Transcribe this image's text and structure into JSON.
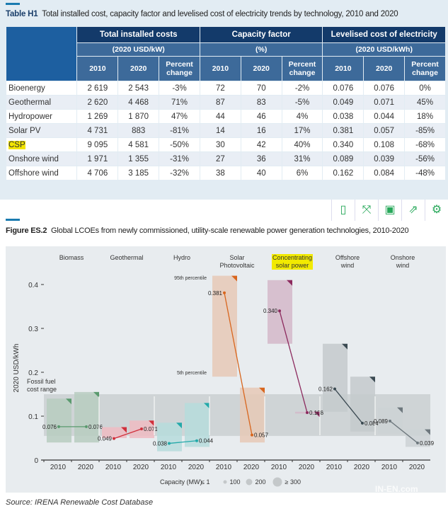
{
  "table": {
    "title_bold": "Table H1",
    "title": "Total installed cost, capacity factor and levelised cost of electricity trends by technology, 2010 and 2020",
    "groups": [
      {
        "name": "Total installed costs",
        "unit": "(2020 USD/kW)"
      },
      {
        "name": "Capacity factor",
        "unit": "(%)"
      },
      {
        "name": "Levelised cost of electricity",
        "unit": "(2020 USD/kWh)"
      }
    ],
    "subcols": [
      "2010",
      "2020",
      "Percent change"
    ],
    "rows": [
      [
        "Bioenergy",
        "2 619",
        "2 543",
        "-3%",
        "72",
        "70",
        "-2%",
        "0.076",
        "0.076",
        "0%"
      ],
      [
        "Geothermal",
        "2 620",
        "4 468",
        "71%",
        "87",
        "83",
        "-5%",
        "0.049",
        "0.071",
        "45%"
      ],
      [
        "Hydropower",
        "1 269",
        "1 870",
        "47%",
        "44",
        "46",
        "4%",
        "0.038",
        "0.044",
        "18%"
      ],
      [
        "Solar PV",
        "4 731",
        "883",
        "-81%",
        "14",
        "16",
        "17%",
        "0.381",
        "0.057",
        "-85%"
      ],
      [
        "CSP",
        "9 095",
        "4 581",
        "-50%",
        "30",
        "42",
        "40%",
        "0.340",
        "0.108",
        "-68%"
      ],
      [
        "Onshore wind",
        "1 971",
        "1 355",
        "-31%",
        "27",
        "36",
        "31%",
        "0.089",
        "0.039",
        "-56%"
      ],
      [
        "Offshore wind",
        "4 706",
        "3 185",
        "-32%",
        "38",
        "40",
        "6%",
        "0.162",
        "0.084",
        "-48%"
      ]
    ]
  },
  "toolbar": [
    "tablet-icon",
    "fullscreen-icon",
    "save-icon",
    "share-icon",
    "settings-icon"
  ],
  "figure": {
    "title_bold": "Figure ES.2",
    "title": "Global LCOEs from newly commissioned, utility-scale renewable power generation technologies, 2010-2020"
  },
  "chart_data": {
    "type": "range-bar",
    "ylabel": "2020 USD/kWh",
    "ylim": [
      0,
      0.45
    ],
    "yticks": [
      "0",
      "0.1",
      "0.2",
      "0.3",
      "0.4"
    ],
    "fossil_label": [
      "Fossil fuel",
      "cost range"
    ],
    "fossil_range": [
      0.055,
      0.15
    ],
    "p95_label": "95th percentile",
    "p5_label": "5th percentile",
    "technologies": [
      {
        "name": [
          "Biomass"
        ],
        "color": "#5a9a6e",
        "fill": "#b7ccc0",
        "r2010": [
          0.04,
          0.14
        ],
        "r2020": [
          0.04,
          0.155
        ],
        "v2010": 0.076,
        "v2020": 0.076,
        "l2010": "0.076",
        "l2020": "0.076"
      },
      {
        "name": [
          "Geothermal"
        ],
        "color": "#d0303c",
        "fill": "#eebbc2",
        "r2010": [
          0.05,
          0.075
        ],
        "r2020": [
          0.05,
          0.09
        ],
        "v2010": 0.049,
        "v2020": 0.071,
        "l2010": "0.049",
        "l2020": "0.071"
      },
      {
        "name": [
          "Hydro"
        ],
        "color": "#23a9a9",
        "fill": "#b6dcdc",
        "r2010": [
          0.02,
          0.085
        ],
        "r2020": [
          0.03,
          0.13
        ],
        "v2010": 0.038,
        "v2020": 0.044,
        "l2010": "0.038",
        "l2020": "0.044"
      },
      {
        "name": [
          "Solar",
          "Photovoltaic"
        ],
        "color": "#d8661e",
        "fill": "#e6c9b6",
        "r2010": [
          0.19,
          0.42
        ],
        "r2020": [
          0.04,
          0.165
        ],
        "v2010": 0.381,
        "v2020": 0.057,
        "l2010": "0.381",
        "l2020": "0.057"
      },
      {
        "name": [
          "Concentrating",
          "solar power"
        ],
        "color": "#8c2a5e",
        "fill": "#d3b9c9",
        "r2010": [
          0.265,
          0.41
        ],
        "r2020": [
          0.106,
          0.11
        ],
        "v2010": 0.34,
        "v2020": 0.108,
        "l2010": "0.340",
        "l2020": "0.108",
        "highlight": true
      },
      {
        "name": [
          "Offshore",
          "wind"
        ],
        "color": "#3b4a52",
        "fill": "#c4cacd",
        "r2010": [
          0.11,
          0.265
        ],
        "r2020": [
          0.065,
          0.19
        ],
        "v2010": 0.162,
        "v2020": 0.084,
        "l2010": "0.162",
        "l2020": "0.084"
      },
      {
        "name": [
          "Onshore",
          "wind"
        ],
        "color": "#6e787e",
        "fill": "#cdd2d5",
        "r2010": [
          0.06,
          0.12
        ],
        "r2020": [
          0.03,
          0.07
        ],
        "v2010": 0.089,
        "v2020": 0.039,
        "l2010": "0.089",
        "l2020": "0.039"
      }
    ],
    "xticks": [
      "2010",
      "2020"
    ],
    "legend": {
      "title": "Capacity (MW)",
      "items": [
        "≤ 1",
        "100",
        "200",
        "≥ 300"
      ]
    }
  },
  "source": "Source: IRENA Renewable Cost Database",
  "watermark": "IN-EN.com"
}
